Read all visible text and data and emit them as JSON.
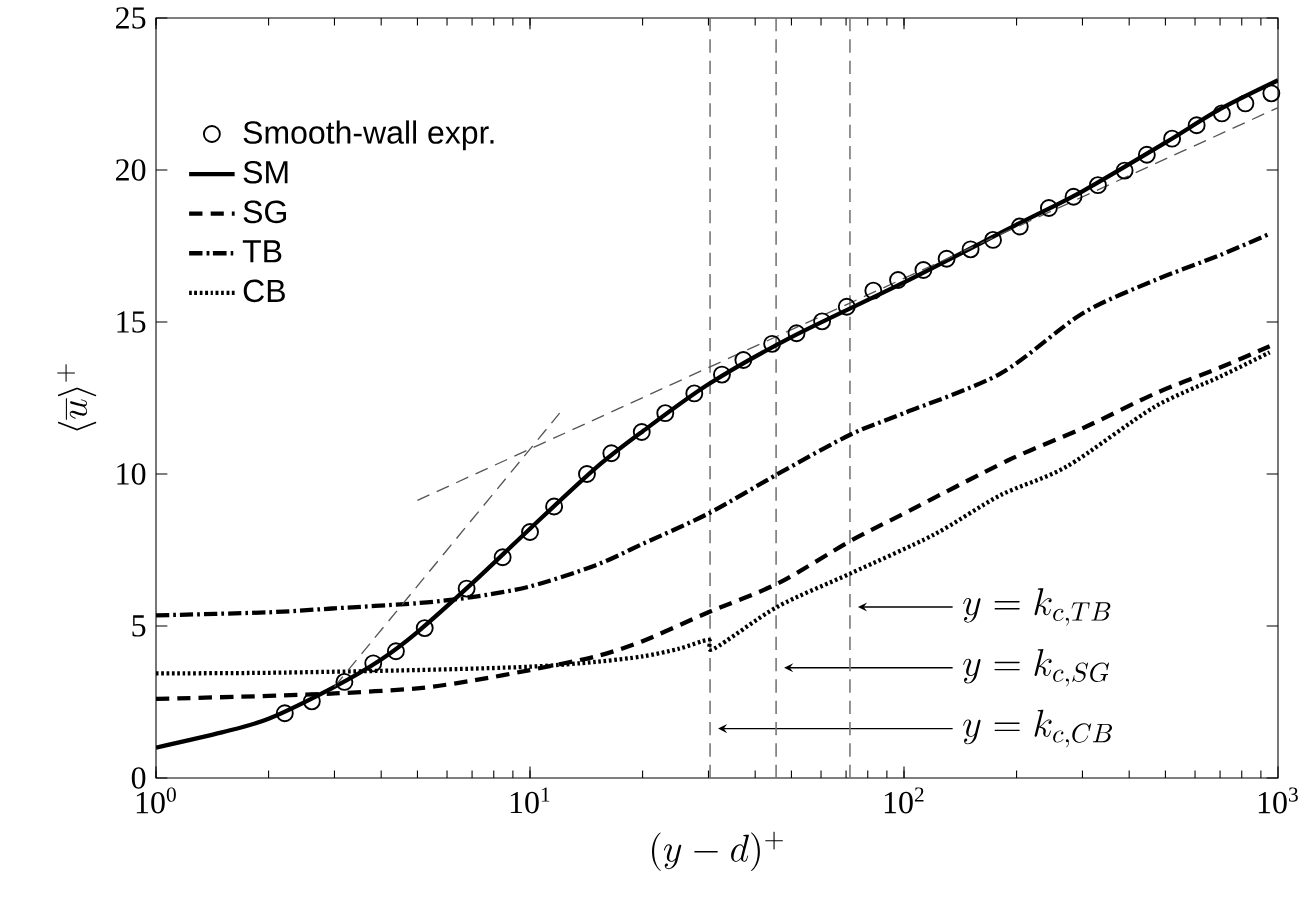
{
  "chart_data": {
    "type": "line",
    "xlabel": "(y-d)^+",
    "ylabel": "\\langle\\overline{u}\\rangle^+",
    "log": "x",
    "grid": false,
    "legend": "top left",
    "xlim": [
      1,
      1000
    ],
    "ylim": [
      0,
      25
    ],
    "xticks": [
      {
        "value": 1,
        "label": "10$^{0}$"
      },
      {
        "value": 10,
        "label": "10$^{1}$"
      },
      {
        "value": 100,
        "label": "10$^{2}$"
      },
      {
        "value": 1000,
        "label": "10$^{3}$"
      }
    ],
    "yticks": [
      0,
      5,
      10,
      15,
      20,
      25
    ],
    "series": [
      {
        "name": "Smooth-wall expr.",
        "type": "scatter",
        "marker": "circle",
        "color": "#000000",
        "x": [
          2.21,
          2.61,
          3.19,
          3.81,
          4.38,
          5.23,
          6.77,
          8.45,
          10.0,
          11.6,
          14.2,
          16.5,
          19.9,
          23.0,
          27.5,
          32.6,
          37.2,
          44.4,
          51.6,
          60.4,
          70.3,
          82.8,
          96.4,
          112.7,
          130,
          150.7,
          173,
          204,
          244,
          284,
          330,
          389,
          446,
          521,
          606,
          708,
          818,
          960
        ],
        "values": [
          2.13,
          2.52,
          3.16,
          3.77,
          4.17,
          4.93,
          6.23,
          7.26,
          8.09,
          8.93,
          10.0,
          10.68,
          11.38,
          12.0,
          12.65,
          13.27,
          13.75,
          14.28,
          14.63,
          15.02,
          15.5,
          16.03,
          16.38,
          16.71,
          17.08,
          17.39,
          17.7,
          18.14,
          18.75,
          19.12,
          19.5,
          19.98,
          20.5,
          21.03,
          21.47,
          21.86,
          22.19,
          22.52
        ]
      },
      {
        "name": "SM",
        "line_style": "solid",
        "color": "#000000",
        "x": [
          1,
          1.5,
          2,
          3,
          4,
          5,
          7,
          10,
          15,
          20,
          30,
          50,
          100,
          200,
          300,
          500,
          700,
          1000
        ],
        "values": [
          1.0,
          1.5,
          1.95,
          3.0,
          3.9,
          4.8,
          6.4,
          8.2,
          10.2,
          11.4,
          12.95,
          14.5,
          16.3,
          18.2,
          19.3,
          20.9,
          22.0,
          22.95
        ]
      },
      {
        "name": "SG",
        "line_style": "dashed",
        "color": "#000000",
        "x": [
          1,
          2,
          3,
          5,
          7,
          10,
          15,
          20,
          30,
          46,
          72,
          100,
          190,
          300,
          470,
          700,
          950
        ],
        "values": [
          2.6,
          2.7,
          2.78,
          2.95,
          3.2,
          3.55,
          4.0,
          4.5,
          5.45,
          6.4,
          7.8,
          8.7,
          10.45,
          11.5,
          12.65,
          13.5,
          14.2
        ]
      },
      {
        "name": "TB",
        "line_style": "dashdot",
        "color": "#000000",
        "x": [
          1,
          2,
          3,
          5,
          7,
          10,
          15,
          20,
          30,
          46,
          72,
          100,
          181,
          300,
          470,
          700,
          950
        ],
        "values": [
          5.35,
          5.45,
          5.58,
          5.75,
          5.95,
          6.3,
          7.0,
          7.7,
          8.7,
          10.0,
          11.3,
          12.0,
          13.3,
          15.28,
          16.38,
          17.2,
          17.9
        ]
      },
      {
        "name": "CB",
        "line_style": "dotted",
        "color": "#000000",
        "x": [
          1,
          2,
          5,
          10,
          15,
          20,
          25,
          30,
          31,
          46,
          72,
          120,
          181,
          272,
          467,
          700,
          950
        ],
        "values": [
          3.44,
          3.46,
          3.55,
          3.66,
          3.82,
          4.0,
          4.25,
          4.54,
          4.25,
          5.64,
          6.73,
          8.0,
          9.3,
          10.24,
          12.2,
          13.2,
          14.0
        ]
      },
      {
        "line_style": "dashed",
        "color": "#555555",
        "x": [
          3,
          12
        ],
        "values": [
          3,
          12
        ]
      },
      {
        "line_style": "dashed",
        "color": "#555555",
        "x": [
          5,
          1000
        ],
        "values": [
          9.13,
          22.05
        ]
      }
    ],
    "ref_lines": [
      {
        "axis": "x",
        "value": 30.3,
        "color": "#777777",
        "line_style": "dashed",
        "label": "y=k_{c,CB}"
      },
      {
        "axis": "x",
        "value": 45.5,
        "color": "#777777",
        "line_style": "dashed",
        "label": "y=k_{c,SG}"
      },
      {
        "axis": "x",
        "value": 71.7,
        "color": "#777777",
        "line_style": "dashed",
        "label": "y=k_{c,TB}"
      }
    ]
  }
}
